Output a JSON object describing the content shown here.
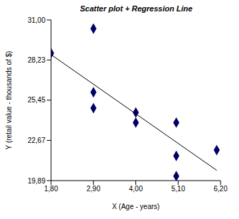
{
  "chart_data": {
    "type": "scatter",
    "title": "Scatter plot + Regression Line",
    "x_label": "X (Age - years)",
    "y_label": "Y (retail value - thousands of $)",
    "xlim": [
      1.8,
      6.2
    ],
    "xticks": [
      {
        "value": 1.8,
        "label": "1,80"
      },
      {
        "value": 2.9,
        "label": "2,90"
      },
      {
        "value": 4.0,
        "label": "4,00"
      },
      {
        "value": 5.1,
        "label": "5,10"
      },
      {
        "value": 6.2,
        "label": "6,20"
      }
    ],
    "ylim": [
      19.89,
      31
    ],
    "yticks": [
      {
        "value": 19.89,
        "label": "19,89"
      },
      {
        "value": 22.67,
        "label": "22,67"
      },
      {
        "value": 25.45,
        "label": "25,45"
      },
      {
        "value": 28.23,
        "label": "28,23"
      },
      {
        "value": 31,
        "label": "31,00"
      }
    ],
    "grid": false,
    "series": [
      {
        "type": "scatter",
        "marker": "diamond",
        "color": "#000066",
        "x": [
          1.8,
          2.9,
          2.9,
          2.9,
          4.0,
          4.0,
          5.05,
          5.05,
          5.05,
          6.1
        ],
        "values": [
          28.7,
          30.4,
          26.0,
          24.9,
          24.6,
          23.9,
          23.9,
          21.6,
          20.2,
          22.0
        ]
      },
      {
        "type": "line",
        "line_style": "solid",
        "color": "#000000",
        "x": [
          1.8,
          6.1
        ],
        "values": [
          28.6,
          20.6
        ]
      }
    ]
  }
}
